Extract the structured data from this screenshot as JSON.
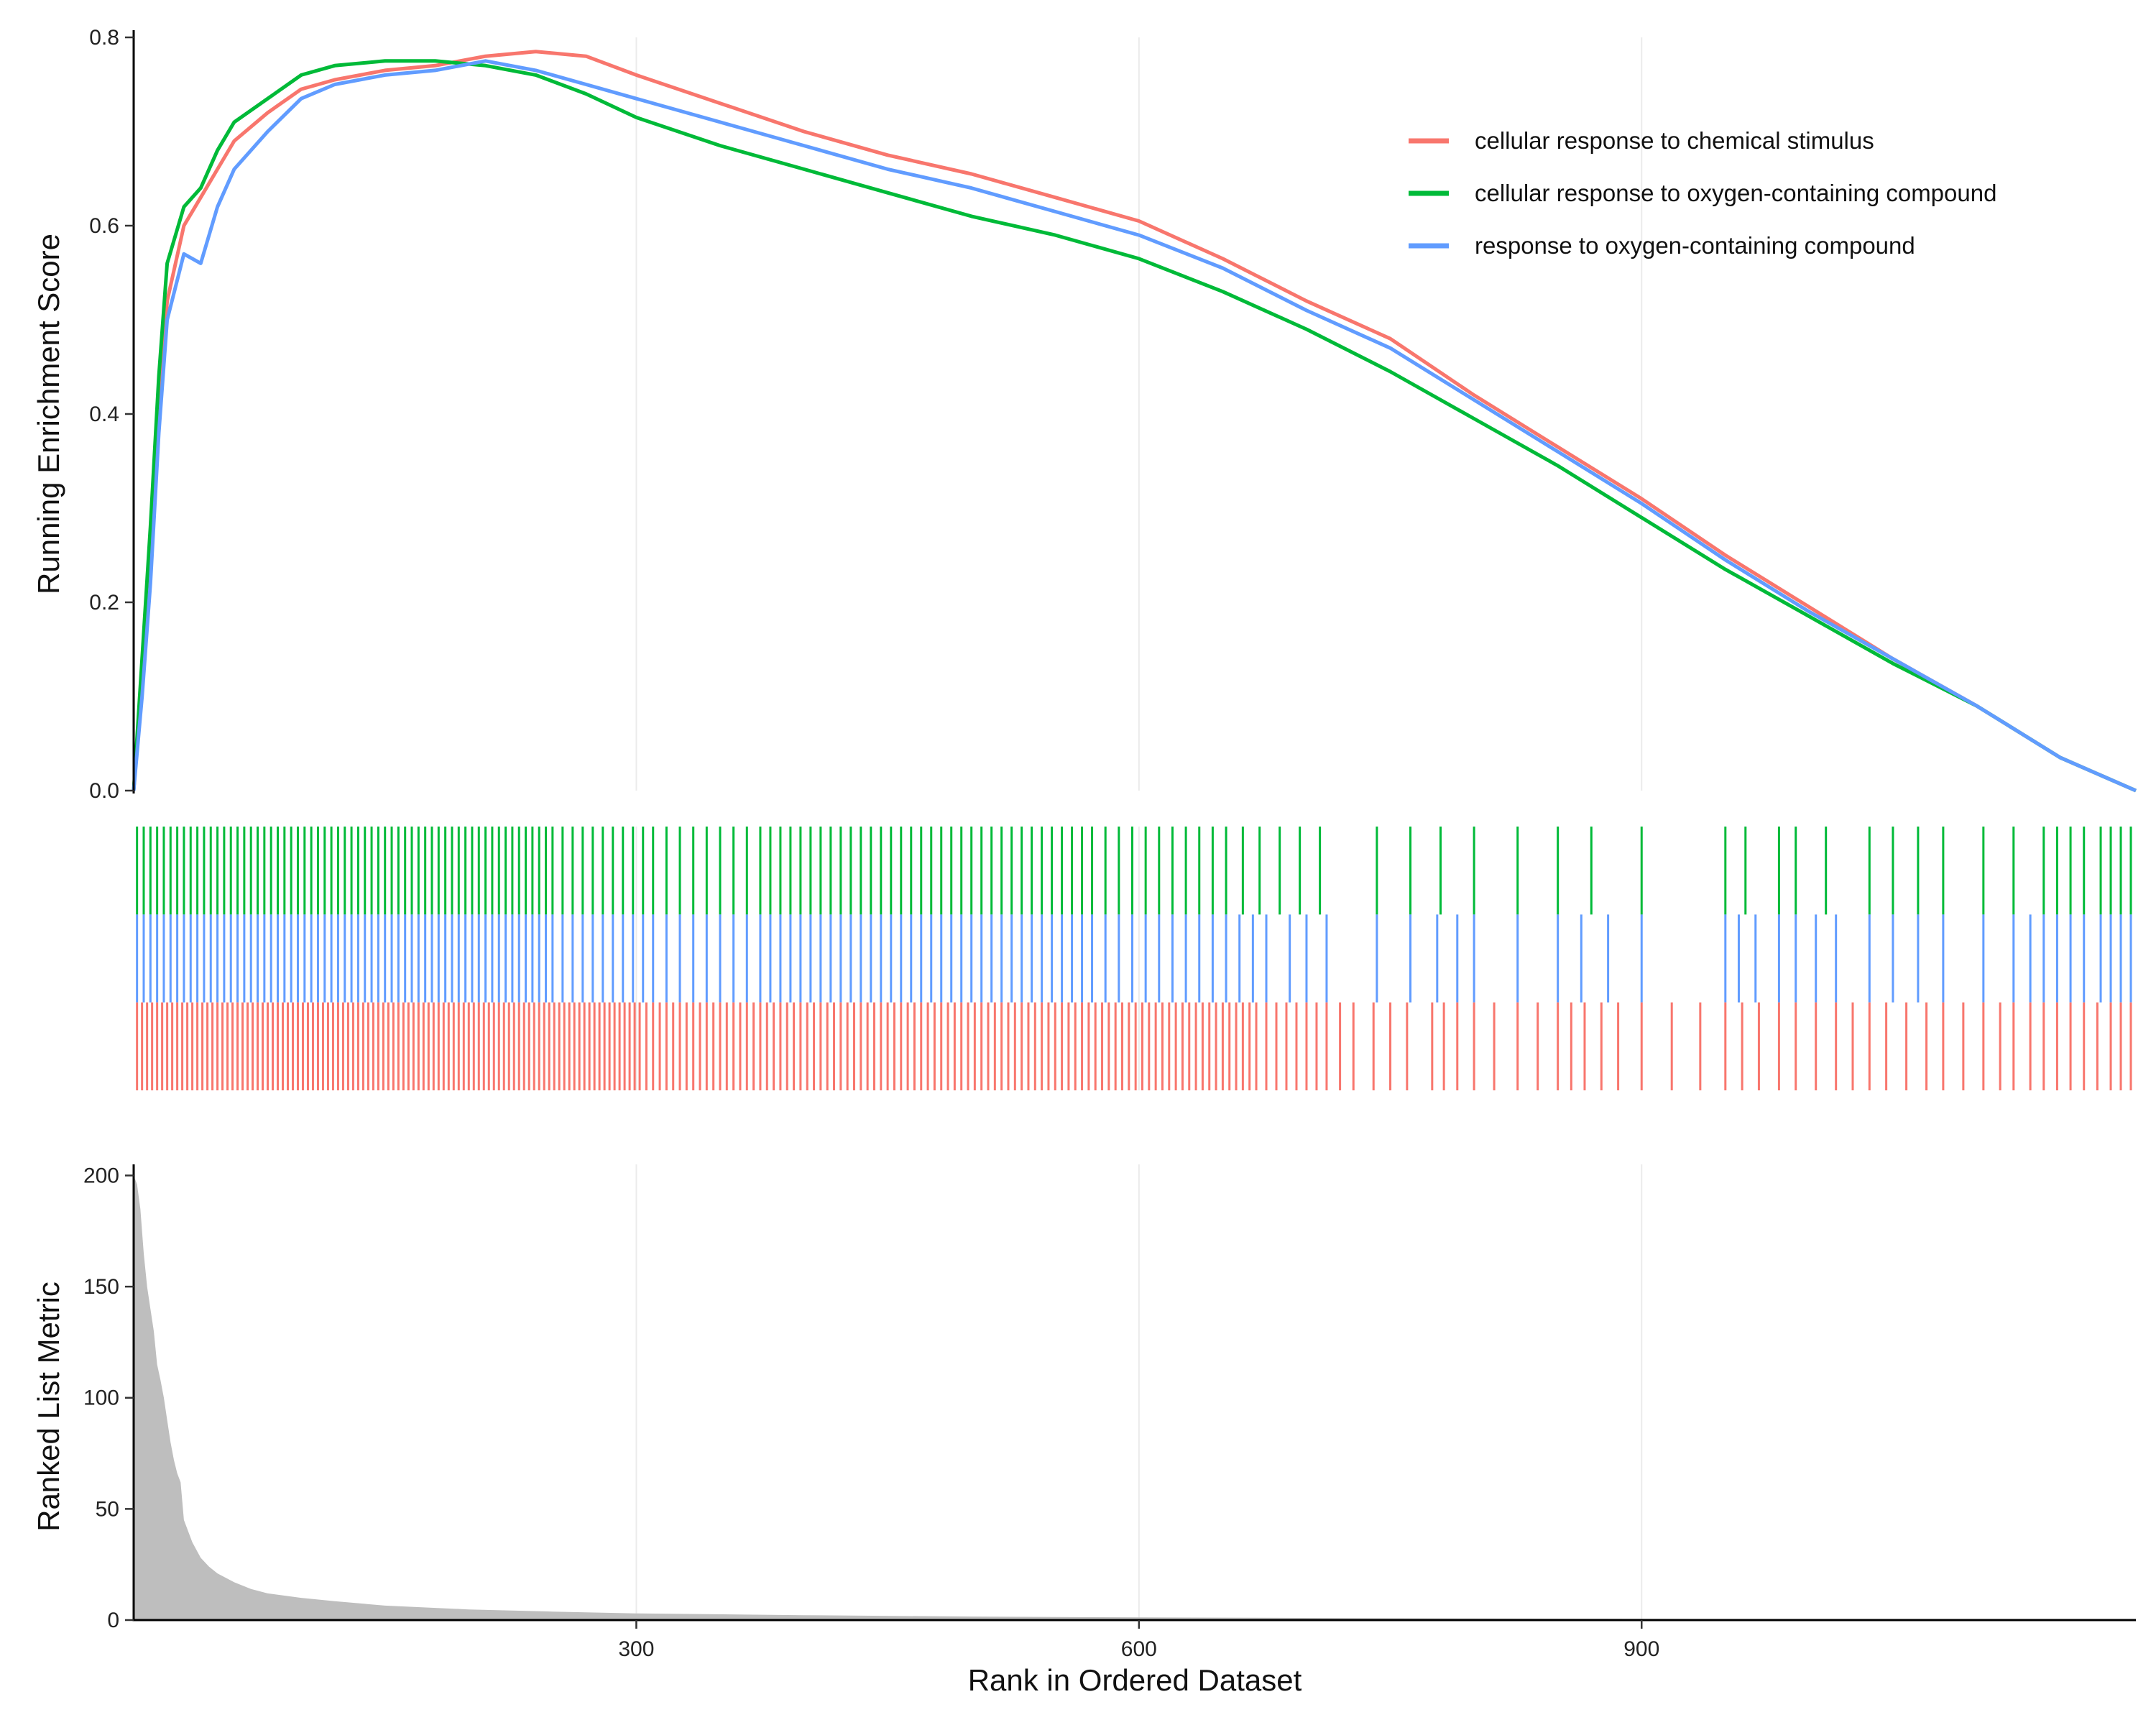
{
  "chart_data": {
    "type": "line",
    "xlabel": "Rank in Ordered Dataset",
    "x_ticks": [
      300,
      600,
      900
    ],
    "x_range": [
      0,
      1195
    ],
    "panels": {
      "enrichment": {
        "ylabel": "Running Enrichment Score",
        "ylim": [
          0,
          0.8
        ],
        "y_ticks": [
          "0.0",
          "0.2",
          "0.4",
          "0.6",
          "0.8"
        ],
        "series": [
          {
            "name": "cellular response to chemical stimulus",
            "color": "#F8766D",
            "x": [
              0,
              5,
              10,
              15,
              20,
              30,
              40,
              50,
              60,
              80,
              100,
              120,
              150,
              180,
              210,
              240,
              270,
              300,
              350,
              400,
              450,
              500,
              550,
              600,
              650,
              700,
              750,
              800,
              850,
              900,
              950,
              1000,
              1050,
              1100,
              1150,
              1195
            ],
            "y": [
              0.0,
              0.12,
              0.25,
              0.4,
              0.52,
              0.6,
              0.63,
              0.66,
              0.69,
              0.72,
              0.745,
              0.755,
              0.765,
              0.77,
              0.78,
              0.785,
              0.78,
              0.76,
              0.73,
              0.7,
              0.675,
              0.655,
              0.63,
              0.605,
              0.565,
              0.52,
              0.48,
              0.42,
              0.365,
              0.31,
              0.25,
              0.195,
              0.14,
              0.09,
              0.035,
              0.0
            ]
          },
          {
            "name": "cellular response to oxygen-containing compound",
            "color": "#00BA38",
            "x": [
              0,
              5,
              10,
              15,
              20,
              30,
              40,
              50,
              60,
              80,
              100,
              120,
              150,
              180,
              210,
              240,
              270,
              300,
              350,
              400,
              450,
              500,
              550,
              600,
              650,
              700,
              750,
              800,
              850,
              900,
              950,
              1000,
              1050,
              1100,
              1150,
              1195
            ],
            "y": [
              0.0,
              0.14,
              0.28,
              0.44,
              0.56,
              0.62,
              0.64,
              0.68,
              0.71,
              0.735,
              0.76,
              0.77,
              0.775,
              0.775,
              0.77,
              0.76,
              0.74,
              0.715,
              0.685,
              0.66,
              0.635,
              0.61,
              0.59,
              0.565,
              0.53,
              0.49,
              0.445,
              0.395,
              0.345,
              0.29,
              0.235,
              0.185,
              0.135,
              0.09,
              0.035,
              0.0
            ]
          },
          {
            "name": "response to oxygen-containing compound",
            "color": "#619CFF",
            "x": [
              0,
              5,
              10,
              15,
              20,
              30,
              40,
              50,
              60,
              80,
              100,
              120,
              150,
              180,
              210,
              240,
              270,
              300,
              350,
              400,
              450,
              500,
              550,
              600,
              650,
              700,
              750,
              800,
              850,
              900,
              950,
              1000,
              1050,
              1100,
              1150,
              1195
            ],
            "y": [
              0.0,
              0.1,
              0.22,
              0.38,
              0.5,
              0.57,
              0.56,
              0.62,
              0.66,
              0.7,
              0.735,
              0.75,
              0.76,
              0.765,
              0.775,
              0.765,
              0.75,
              0.735,
              0.71,
              0.685,
              0.66,
              0.64,
              0.615,
              0.59,
              0.555,
              0.51,
              0.47,
              0.415,
              0.36,
              0.305,
              0.245,
              0.19,
              0.14,
              0.09,
              0.035,
              0.0
            ]
          }
        ]
      },
      "rug": {
        "rows": [
          {
            "name": "cellular response to oxygen-containing compound",
            "color": "#00BA38",
            "positions": [
              2,
              6,
              10,
              14,
              18,
              22,
              26,
              30,
              34,
              38,
              42,
              46,
              50,
              54,
              58,
              62,
              66,
              70,
              74,
              78,
              82,
              86,
              90,
              94,
              98,
              102,
              106,
              110,
              114,
              118,
              122,
              126,
              130,
              134,
              138,
              142,
              146,
              150,
              154,
              158,
              162,
              166,
              170,
              174,
              178,
              182,
              186,
              190,
              194,
              198,
              202,
              206,
              210,
              214,
              218,
              222,
              226,
              230,
              234,
              238,
              242,
              246,
              250,
              256,
              262,
              268,
              274,
              280,
              286,
              292,
              298,
              304,
              310,
              318,
              326,
              334,
              342,
              350,
              358,
              366,
              374,
              380,
              386,
              392,
              398,
              404,
              410,
              416,
              422,
              428,
              434,
              440,
              446,
              452,
              458,
              464,
              470,
              476,
              482,
              488,
              494,
              500,
              506,
              512,
              518,
              524,
              530,
              536,
              542,
              548,
              554,
              560,
              566,
              572,
              580,
              588,
              596,
              604,
              612,
              620,
              628,
              636,
              644,
              652,
              662,
              672,
              684,
              696,
              708,
              742,
              762,
              780,
              800,
              826,
              850,
              870,
              900,
              950,
              962,
              982,
              992,
              1010,
              1036,
              1050,
              1065,
              1080,
              1104,
              1122,
              1140,
              1148,
              1156,
              1164,
              1174,
              1180,
              1186,
              1192
            ]
          },
          {
            "name": "response to oxygen-containing compound",
            "color": "#619CFF",
            "positions": [
              2,
              6,
              10,
              14,
              18,
              22,
              26,
              30,
              34,
              38,
              42,
              46,
              50,
              54,
              58,
              62,
              66,
              70,
              74,
              78,
              82,
              86,
              90,
              94,
              98,
              102,
              106,
              110,
              114,
              118,
              122,
              126,
              130,
              134,
              138,
              142,
              146,
              150,
              154,
              158,
              162,
              166,
              170,
              174,
              178,
              182,
              186,
              190,
              194,
              198,
              202,
              206,
              210,
              214,
              218,
              222,
              226,
              230,
              234,
              238,
              242,
              246,
              250,
              256,
              262,
              268,
              274,
              280,
              286,
              292,
              298,
              304,
              310,
              318,
              326,
              334,
              342,
              350,
              358,
              366,
              374,
              380,
              386,
              392,
              398,
              404,
              410,
              416,
              422,
              428,
              434,
              440,
              446,
              452,
              458,
              464,
              470,
              476,
              482,
              488,
              494,
              500,
              506,
              512,
              518,
              524,
              530,
              536,
              542,
              548,
              554,
              560,
              566,
              572,
              580,
              588,
              596,
              604,
              612,
              620,
              628,
              636,
              644,
              652,
              660,
              668,
              676,
              690,
              700,
              712,
              742,
              762,
              778,
              790,
              800,
              826,
              850,
              864,
              880,
              900,
              950,
              958,
              968,
              982,
              992,
              1004,
              1016,
              1036,
              1050,
              1065,
              1080,
              1104,
              1122,
              1132,
              1140,
              1148,
              1156,
              1164,
              1174,
              1180,
              1186,
              1192
            ]
          },
          {
            "name": "cellular response to chemical stimulus",
            "color": "#F8766D",
            "positions": [
              2,
              5,
              8,
              11,
              14,
              17,
              20,
              23,
              26,
              29,
              32,
              35,
              38,
              41,
              44,
              47,
              50,
              53,
              56,
              59,
              62,
              65,
              68,
              71,
              74,
              77,
              80,
              83,
              86,
              89,
              92,
              95,
              98,
              101,
              104,
              107,
              110,
              113,
              116,
              119,
              122,
              125,
              128,
              131,
              134,
              137,
              140,
              143,
              146,
              149,
              152,
              155,
              158,
              161,
              164,
              167,
              170,
              173,
              176,
              179,
              182,
              185,
              188,
              191,
              194,
              197,
              200,
              203,
              206,
              209,
              212,
              215,
              218,
              221,
              224,
              227,
              230,
              233,
              236,
              239,
              242,
              245,
              248,
              251,
              254,
              257,
              260,
              263,
              266,
              269,
              272,
              275,
              278,
              281,
              284,
              287,
              290,
              293,
              296,
              299,
              302,
              306,
              310,
              314,
              318,
              322,
              326,
              330,
              334,
              338,
              342,
              346,
              350,
              354,
              358,
              362,
              366,
              370,
              374,
              378,
              382,
              386,
              390,
              394,
              398,
              402,
              406,
              410,
              414,
              418,
              422,
              426,
              430,
              434,
              438,
              442,
              446,
              450,
              454,
              458,
              462,
              466,
              470,
              474,
              478,
              482,
              486,
              490,
              494,
              498,
              502,
              506,
              510,
              514,
              518,
              522,
              526,
              530,
              534,
              538,
              542,
              546,
              550,
              554,
              558,
              562,
              566,
              570,
              574,
              578,
              582,
              586,
              590,
              594,
              598,
              602,
              606,
              610,
              614,
              618,
              622,
              626,
              630,
              634,
              638,
              642,
              646,
              650,
              654,
              658,
              662,
              666,
              670,
              676,
              682,
              688,
              694,
              700,
              706,
              712,
              720,
              728,
              740,
              750,
              760,
              775,
              782,
              790,
              800,
              812,
              826,
              838,
              850,
              858,
              866,
              876,
              886,
              900,
              918,
              935,
              950,
              960,
              970,
              982,
              992,
              1004,
              1016,
              1026,
              1036,
              1046,
              1058,
              1070,
              1080,
              1092,
              1104,
              1114,
              1122,
              1132,
              1140,
              1148,
              1156,
              1164,
              1172,
              1180,
              1186,
              1192
            ]
          }
        ]
      },
      "ranked": {
        "ylabel": "Ranked List Metric",
        "ylim": [
          0,
          205
        ],
        "y_ticks": [
          "0",
          "50",
          "100",
          "150",
          "200"
        ],
        "color": "#BEBEBE",
        "x": [
          0,
          2,
          4,
          6,
          8,
          10,
          12,
          14,
          16,
          18,
          20,
          22,
          24,
          26,
          28,
          30,
          35,
          40,
          45,
          50,
          60,
          70,
          80,
          100,
          120,
          150,
          200,
          250,
          300,
          400,
          500,
          600,
          800,
          1000,
          1195
        ],
        "y": [
          200,
          196,
          185,
          165,
          150,
          140,
          130,
          115,
          108,
          100,
          90,
          80,
          72,
          66,
          62,
          45,
          35,
          28,
          24,
          21,
          17,
          14,
          12,
          10,
          8.5,
          6.5,
          4.8,
          3.8,
          3.0,
          2.2,
          1.6,
          1.2,
          0.7,
          0.4,
          0.1
        ]
      }
    }
  }
}
